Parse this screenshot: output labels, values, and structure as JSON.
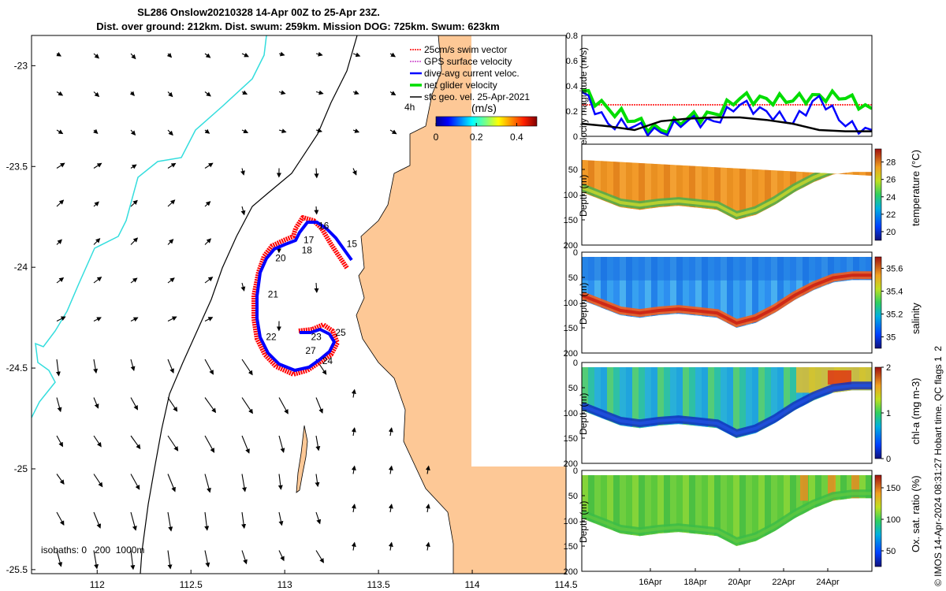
{
  "title_line1": "SL286 Onslow20210328 14-Apr 00Z to 25-Apr 23Z.",
  "title_line2": "Dist. over ground: 212km. Dist. swum: 259km. Mission DOG: 725km. Swum: 623km",
  "footer_credit": "© IMOS 14-Apr-2024 08:31:27 Hobart time. QC flags 1  2",
  "colors": {
    "land": "#fdc896",
    "isobath_200": "#000000",
    "isobath_1000": "#33dddd",
    "swim": "#ff0000",
    "dac": "#0000ff",
    "net": "#00dd00"
  },
  "chart_data": [
    {
      "type": "scatter",
      "name": "track-map",
      "xlim": [
        111.65,
        114.5
      ],
      "ylim": [
        -25.52,
        -22.85
      ],
      "x_ticks": [
        "112",
        "112.5",
        "113",
        "113.5",
        "114",
        "114.5"
      ],
      "y_ticks": [
        "-23",
        "-23.5",
        "-24",
        "-24.5",
        "-25",
        "-25.5"
      ],
      "legend": [
        "25cm/s swim vector",
        "GPS surface velocity",
        "dive-avg current veloc.",
        "net glider velocity",
        "sfc geo. vel. 25-Apr-2021"
      ],
      "colorbar": {
        "title": "(m/s)",
        "ticks": [
          "0",
          "0.2",
          "0.4"
        ],
        "range": [
          0,
          0.5
        ],
        "time_label": "4h"
      },
      "isobath_text": "isobaths: 0   200  1000m",
      "day_labels": [
        {
          "label": "15",
          "lon": 113.33,
          "lat": -23.9
        },
        {
          "label": "16",
          "lon": 113.18,
          "lat": -23.81
        },
        {
          "label": "17",
          "lon": 113.1,
          "lat": -23.88
        },
        {
          "label": "18",
          "lon": 113.09,
          "lat": -23.93
        },
        {
          "label": "20",
          "lon": 112.95,
          "lat": -23.97
        },
        {
          "label": "21",
          "lon": 112.91,
          "lat": -24.15
        },
        {
          "label": "22",
          "lon": 112.9,
          "lat": -24.36
        },
        {
          "label": "23",
          "lon": 113.14,
          "lat": -24.36
        },
        {
          "label": "24",
          "lon": 113.2,
          "lat": -24.48
        },
        {
          "label": "25",
          "lon": 113.27,
          "lat": -24.34
        },
        {
          "label": "27",
          "lon": 113.11,
          "lat": -24.43
        }
      ]
    },
    {
      "type": "line",
      "name": "velocity-magnitude",
      "ylabel": "velocity magnitude (m/s)",
      "ylim": [
        0,
        0.8
      ],
      "y_ticks": [
        "0",
        "0.2",
        "0.4",
        "0.6",
        "0.8"
      ],
      "series": [
        {
          "name": "swim speed 25cm/s",
          "color": "#ff0000",
          "values": [
            0.25,
            0.25,
            0.25,
            0.25,
            0.25,
            0.25,
            0.25,
            0.25,
            0.25,
            0.25,
            0.25,
            0.25
          ]
        },
        {
          "name": "net glider velocity",
          "color": "#00dd00",
          "values": [
            0.36,
            0.22,
            0.12,
            0.05,
            0.14,
            0.18,
            0.3,
            0.3,
            0.28,
            0.33,
            0.3,
            0.22
          ]
        },
        {
          "name": "dive-avg current",
          "color": "#0000ff",
          "values": [
            0.35,
            0.1,
            0.08,
            0.03,
            0.12,
            0.12,
            0.25,
            0.2,
            0.1,
            0.32,
            0.08,
            0.05
          ]
        },
        {
          "name": "surface geostrophic",
          "color": "#000000",
          "values": [
            0.1,
            0.08,
            0.05,
            0.12,
            0.14,
            0.15,
            0.15,
            0.13,
            0.1,
            0.05,
            0.04,
            0.04
          ]
        }
      ]
    },
    {
      "type": "heatmap",
      "name": "temperature-section",
      "ylabel": "Depth (m)",
      "ylim": [
        200,
        0
      ],
      "y_ticks": [
        "50",
        "100",
        "150",
        "200"
      ],
      "colorbar_label": "temperature (°C)",
      "colorbar_ticks": [
        "28",
        "26",
        "24",
        "22",
        "20"
      ],
      "colorbar_range": [
        19,
        29.5
      ]
    },
    {
      "type": "heatmap",
      "name": "salinity-section",
      "ylabel": "Depth (m)",
      "ylim": [
        200,
        0
      ],
      "y_ticks": [
        "0",
        "50",
        "100",
        "150",
        "200"
      ],
      "colorbar_label": "salinity",
      "colorbar_ticks": [
        "35.6",
        "35.4",
        "35.2",
        "35"
      ],
      "colorbar_range": [
        34.9,
        35.7
      ]
    },
    {
      "type": "heatmap",
      "name": "chl-section",
      "ylabel": "Depth (m)",
      "ylim": [
        200,
        0
      ],
      "y_ticks": [
        "0",
        "50",
        "100",
        "150",
        "200"
      ],
      "colorbar_label": "chl-a (mg m-3)",
      "colorbar_ticks": [
        "2",
        "1",
        "0"
      ],
      "colorbar_range": [
        0,
        2
      ]
    },
    {
      "type": "heatmap",
      "name": "oxygen-section",
      "ylabel": "Depth (m)",
      "ylim": [
        200,
        0
      ],
      "y_ticks": [
        "0",
        "50",
        "100",
        "150",
        "200"
      ],
      "x_ticks": [
        "16Apr",
        "18Apr",
        "20Apr",
        "22Apr",
        "24Apr"
      ],
      "colorbar_label": "Ox. sat. ratio (%)",
      "colorbar_ticks": [
        "150",
        "100",
        "50"
      ],
      "colorbar_range": [
        25,
        170
      ]
    }
  ]
}
